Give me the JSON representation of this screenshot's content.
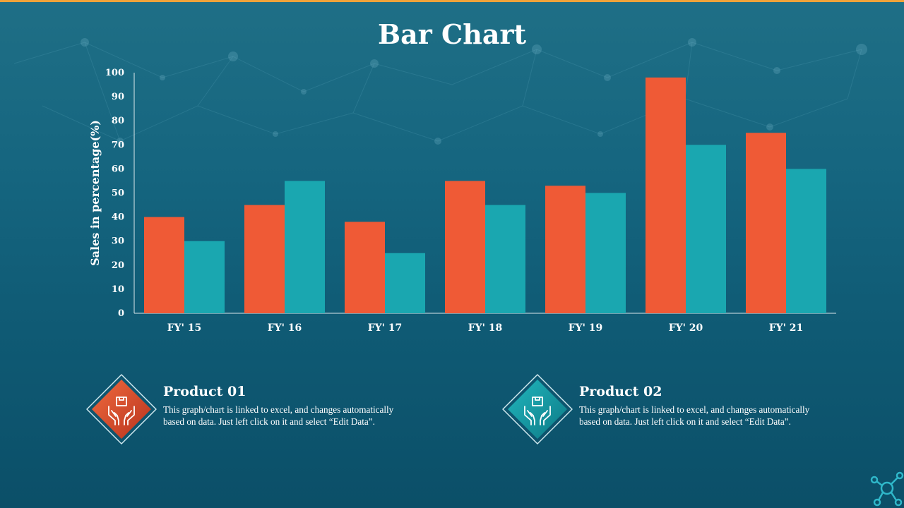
{
  "title": "Bar Chart",
  "colors": {
    "product_01": "#ef5a36",
    "product_02": "#1aa7b0",
    "accent_line": "#f0a33a"
  },
  "chart_data": {
    "type": "bar",
    "title": "",
    "xlabel": "",
    "ylabel": "Sales in percentage(%)",
    "ylim": [
      0,
      100
    ],
    "yticks": [
      0,
      10,
      20,
      30,
      40,
      50,
      60,
      70,
      80,
      90,
      100
    ],
    "categories": [
      "FY' 15",
      "FY' 16",
      "FY' 17",
      "FY' 18",
      "FY' 19",
      "FY' 20",
      "FY' 21"
    ],
    "series": [
      {
        "color": "#ef5a36",
        "values": [
          40,
          45,
          38,
          55,
          53,
          98,
          75
        ]
      },
      {
        "color": "#1aa7b0",
        "values": [
          30,
          55,
          25,
          45,
          50,
          70,
          60
        ]
      }
    ],
    "grid": false,
    "legend": "none"
  },
  "cards": [
    {
      "heading": "Product 01",
      "text": "This graph/chart is linked to excel, and changes automatically based on data. Just left click on it and select “Edit Data”.",
      "icon": "hands-box-icon",
      "color": "#ef5a36"
    },
    {
      "heading": "Product 02",
      "text": "This graph/chart is linked to excel, and changes automatically based on data. Just left click on it and select “Edit Data”.",
      "icon": "hands-box-icon",
      "color": "#1aa7b0"
    }
  ]
}
